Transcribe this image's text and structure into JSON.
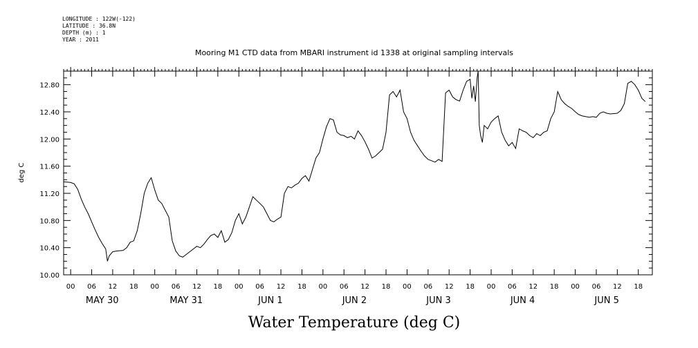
{
  "header": {
    "longitude": "LONGITUDE : 122W(-122)",
    "latitude": "LATITUDE : 36.8N",
    "depth": "DEPTH (m) : 1",
    "year": "YEAR : 2011"
  },
  "chart_data": {
    "type": "line",
    "title": "Mooring M1 CTD data from MBARI instrument id 1338 at original sampling intervals",
    "xlabel": "Water Temperature (deg C)",
    "ylabel": "deg C",
    "ylim": [
      10.0,
      13.0
    ],
    "y_ticks": [
      "10.00",
      "10.40",
      "10.80",
      "11.20",
      "11.60",
      "12.00",
      "12.40",
      "12.80"
    ],
    "x_hour_labels": [
      "00",
      "06",
      "12",
      "18"
    ],
    "day_labels": [
      "MAY 30",
      "MAY 31",
      "JUN  1",
      "JUN  2",
      "JUN  3",
      "JUN  4",
      "JUN  5"
    ],
    "x_unit": "hours since MAY 30 00",
    "xlim": [
      -2,
      166
    ],
    "grid": false,
    "series": [
      {
        "values": [
          [
            -2,
            11.37
          ],
          [
            0,
            11.36
          ],
          [
            1,
            11.34
          ],
          [
            2,
            11.26
          ],
          [
            3,
            11.12
          ],
          [
            4,
            11.0
          ],
          [
            5,
            10.9
          ],
          [
            6,
            10.78
          ],
          [
            7,
            10.66
          ],
          [
            8,
            10.55
          ],
          [
            9,
            10.46
          ],
          [
            10,
            10.38
          ],
          [
            10.5,
            10.2
          ],
          [
            11,
            10.28
          ],
          [
            12,
            10.34
          ],
          [
            13,
            10.35
          ],
          [
            15,
            10.36
          ],
          [
            16,
            10.4
          ],
          [
            17,
            10.48
          ],
          [
            18,
            10.5
          ],
          [
            19,
            10.65
          ],
          [
            20,
            10.9
          ],
          [
            21,
            11.2
          ],
          [
            22,
            11.35
          ],
          [
            23,
            11.43
          ],
          [
            24,
            11.25
          ],
          [
            25,
            11.1
          ],
          [
            26,
            11.05
          ],
          [
            27,
            10.95
          ],
          [
            28,
            10.85
          ],
          [
            29,
            10.5
          ],
          [
            30,
            10.35
          ],
          [
            31,
            10.28
          ],
          [
            32,
            10.26
          ],
          [
            33,
            10.3
          ],
          [
            35,
            10.38
          ],
          [
            36,
            10.42
          ],
          [
            37,
            10.4
          ],
          [
            38,
            10.45
          ],
          [
            39,
            10.52
          ],
          [
            40,
            10.58
          ],
          [
            41,
            10.6
          ],
          [
            42,
            10.55
          ],
          [
            43,
            10.65
          ],
          [
            44,
            10.48
          ],
          [
            45,
            10.52
          ],
          [
            46,
            10.62
          ],
          [
            47,
            10.8
          ],
          [
            48,
            10.9
          ],
          [
            49,
            10.75
          ],
          [
            50,
            10.85
          ],
          [
            51,
            11.0
          ],
          [
            52,
            11.15
          ],
          [
            53,
            11.1
          ],
          [
            54,
            11.05
          ],
          [
            55,
            11.0
          ],
          [
            56,
            10.9
          ],
          [
            57,
            10.8
          ],
          [
            58,
            10.78
          ],
          [
            59,
            10.82
          ],
          [
            60,
            10.85
          ],
          [
            61,
            11.2
          ],
          [
            62,
            11.3
          ],
          [
            63,
            11.28
          ],
          [
            64,
            11.32
          ],
          [
            65,
            11.35
          ],
          [
            66,
            11.42
          ],
          [
            67,
            11.46
          ],
          [
            68,
            11.38
          ],
          [
            69,
            11.55
          ],
          [
            70,
            11.72
          ],
          [
            71,
            11.8
          ],
          [
            72,
            12.0
          ],
          [
            73,
            12.18
          ],
          [
            74,
            12.3
          ],
          [
            75,
            12.28
          ],
          [
            76,
            12.1
          ],
          [
            77,
            12.06
          ],
          [
            78,
            12.05
          ],
          [
            79,
            12.02
          ],
          [
            80,
            12.04
          ],
          [
            81,
            12.0
          ],
          [
            82,
            12.12
          ],
          [
            83,
            12.05
          ],
          [
            84,
            11.96
          ],
          [
            85,
            11.85
          ],
          [
            86,
            11.72
          ],
          [
            87,
            11.75
          ],
          [
            88,
            11.8
          ],
          [
            89,
            11.85
          ],
          [
            90,
            12.1
          ],
          [
            91,
            12.65
          ],
          [
            92,
            12.7
          ],
          [
            93,
            12.62
          ],
          [
            94,
            12.72
          ],
          [
            95,
            12.4
          ],
          [
            96,
            12.3
          ],
          [
            97,
            12.1
          ],
          [
            98,
            11.98
          ],
          [
            99,
            11.9
          ],
          [
            100,
            11.82
          ],
          [
            101,
            11.75
          ],
          [
            102,
            11.7
          ],
          [
            103,
            11.68
          ],
          [
            104,
            11.66
          ],
          [
            105,
            11.7
          ],
          [
            106,
            11.67
          ],
          [
            107,
            12.68
          ],
          [
            108,
            12.72
          ],
          [
            109,
            12.62
          ],
          [
            110,
            12.58
          ],
          [
            111,
            12.56
          ],
          [
            112,
            12.72
          ],
          [
            113,
            12.85
          ],
          [
            114,
            12.88
          ],
          [
            114.5,
            12.6
          ],
          [
            115,
            12.78
          ],
          [
            115.5,
            12.55
          ],
          [
            116,
            12.9
          ],
          [
            116.3,
            13.0
          ],
          [
            116.6,
            12.2
          ],
          [
            117,
            12.05
          ],
          [
            117.5,
            11.95
          ],
          [
            118,
            12.2
          ],
          [
            119,
            12.15
          ],
          [
            120,
            12.25
          ],
          [
            121,
            12.3
          ],
          [
            122,
            12.34
          ],
          [
            123,
            12.1
          ],
          [
            124,
            11.98
          ],
          [
            125,
            11.9
          ],
          [
            126,
            11.95
          ],
          [
            127,
            11.86
          ],
          [
            128,
            12.15
          ],
          [
            129,
            12.12
          ],
          [
            130,
            12.1
          ],
          [
            131,
            12.05
          ],
          [
            132,
            12.02
          ],
          [
            133,
            12.08
          ],
          [
            134,
            12.05
          ],
          [
            135,
            12.1
          ],
          [
            136,
            12.12
          ],
          [
            137,
            12.3
          ],
          [
            138,
            12.4
          ],
          [
            139,
            12.7
          ],
          [
            140,
            12.58
          ],
          [
            141,
            12.52
          ],
          [
            142,
            12.48
          ],
          [
            143,
            12.45
          ],
          [
            144,
            12.4
          ],
          [
            145,
            12.36
          ],
          [
            146,
            12.34
          ],
          [
            148,
            12.32
          ],
          [
            149,
            12.33
          ],
          [
            150,
            12.32
          ],
          [
            151,
            12.38
          ],
          [
            152,
            12.4
          ],
          [
            153,
            12.38
          ],
          [
            154,
            12.37
          ],
          [
            156,
            12.38
          ],
          [
            157,
            12.42
          ],
          [
            158,
            12.52
          ],
          [
            159,
            12.82
          ],
          [
            160,
            12.85
          ],
          [
            161,
            12.8
          ],
          [
            162,
            12.72
          ],
          [
            163,
            12.6
          ],
          [
            164,
            12.55
          ]
        ]
      }
    ]
  }
}
